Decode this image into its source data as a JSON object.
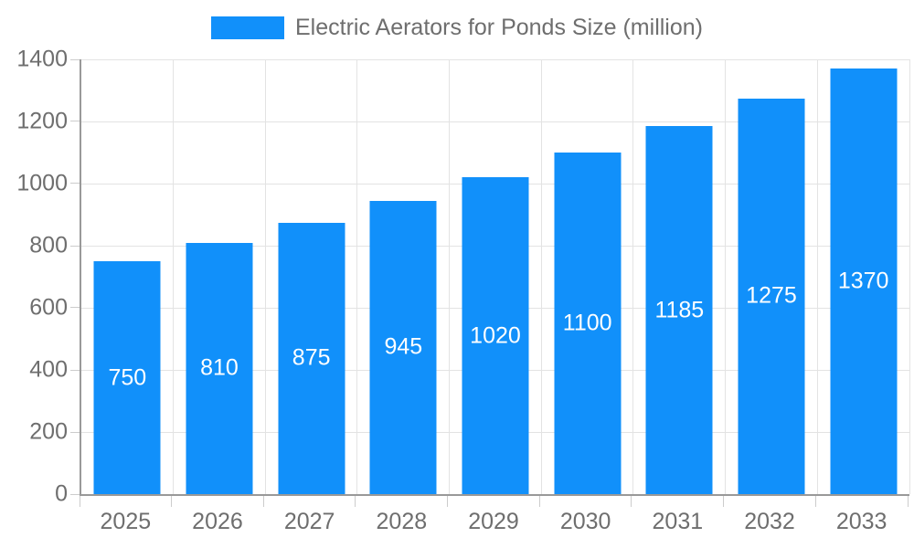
{
  "chart_data": {
    "type": "bar",
    "title": "Electric Aerators for Ponds Size (million)",
    "legend": [
      "Electric Aerators for Ponds Size (million)"
    ],
    "legend_position": "top-center",
    "categories": [
      "2025",
      "2026",
      "2027",
      "2028",
      "2029",
      "2030",
      "2031",
      "2032",
      "2033"
    ],
    "values": [
      750,
      810,
      875,
      945,
      1020,
      1100,
      1185,
      1275,
      1370
    ],
    "value_labels": [
      "750",
      "810",
      "875",
      "945",
      "1020",
      "1100",
      "1185",
      "1275",
      "1370"
    ],
    "value_label_position": "center-inside",
    "xlabel": "",
    "ylabel": "",
    "ylim": [
      0,
      1400
    ],
    "yticks": [
      0,
      200,
      400,
      600,
      800,
      1000,
      1200,
      1400
    ],
    "grid": true,
    "colors": {
      "bar": "#1190fa",
      "value_label": "#ffffff",
      "axis_text": "#6e6e6e",
      "grid_line": "#e3e3e3",
      "axis_line": "#999999",
      "tick_mark": "#cccccc",
      "background": "#ffffff"
    }
  }
}
